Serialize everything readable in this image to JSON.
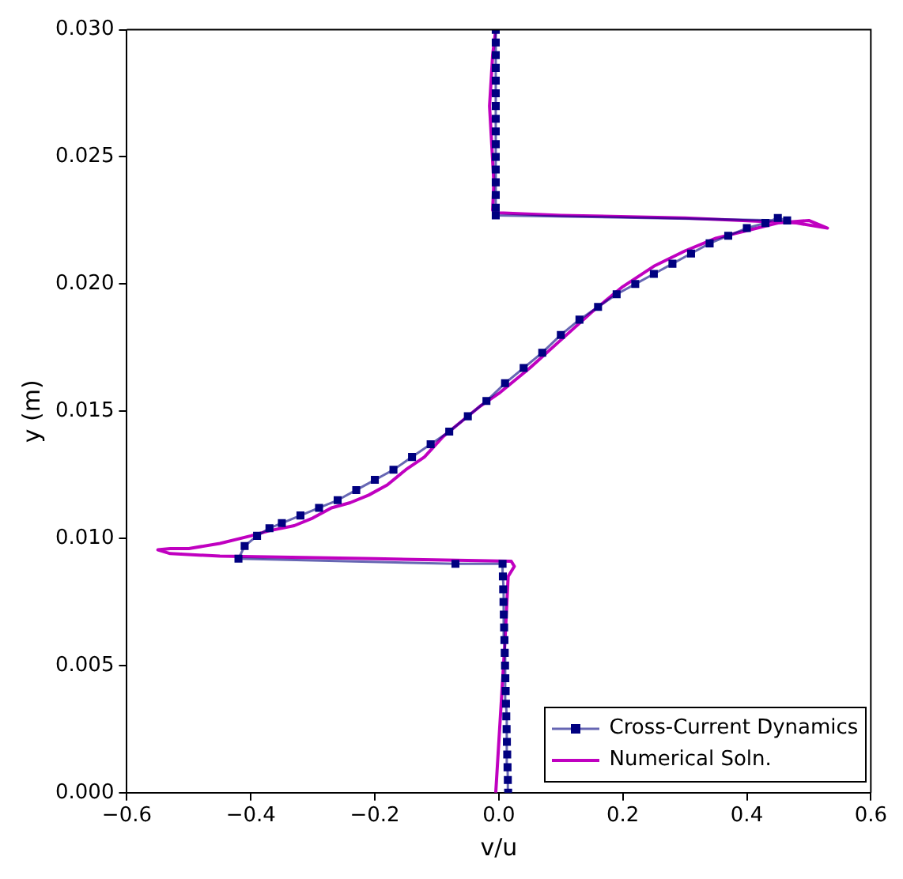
{
  "chart_data": {
    "type": "line",
    "xlabel": "v/u",
    "ylabel": "y (m)",
    "xlim": [
      -0.6,
      0.6
    ],
    "ylim": [
      0,
      0.03
    ],
    "xticks": [
      {
        "value": -0.6,
        "label": "−0.6"
      },
      {
        "value": -0.4,
        "label": "−0.4"
      },
      {
        "value": -0.2,
        "label": "−0.2"
      },
      {
        "value": 0,
        "label": "0.0"
      },
      {
        "value": 0.2,
        "label": "0.2"
      },
      {
        "value": 0.4,
        "label": "0.4"
      },
      {
        "value": 0.6,
        "label": "0.6"
      }
    ],
    "yticks": [
      {
        "value": 0,
        "label": "0.000"
      },
      {
        "value": 0.005,
        "label": "0.005"
      },
      {
        "value": 0.01,
        "label": "0.010"
      },
      {
        "value": 0.015,
        "label": "0.015"
      },
      {
        "value": 0.02,
        "label": "0.020"
      },
      {
        "value": 0.025,
        "label": "0.025"
      },
      {
        "value": 0.03,
        "label": "0.030"
      }
    ],
    "grid": false,
    "legend": "bottom right",
    "line_style": "solid",
    "series": [
      {
        "name": "Cross-Current Dynamics",
        "color": "#000080",
        "marker": "square",
        "x": [
          0.015,
          0.0145,
          0.014,
          0.0135,
          0.013,
          0.0125,
          0.012,
          0.0115,
          0.011,
          0.0105,
          0.01,
          0.0095,
          0.009,
          0.0085,
          0.008,
          0.0075,
          0.007,
          0.0065,
          0.006,
          -0.07,
          -0.42,
          -0.41,
          -0.39,
          -0.37,
          -0.35,
          -0.32,
          -0.29,
          -0.26,
          -0.23,
          -0.2,
          -0.17,
          -0.14,
          -0.11,
          -0.08,
          -0.05,
          -0.02,
          0.01,
          0.04,
          0.07,
          0.1,
          0.13,
          0.16,
          0.19,
          0.22,
          0.25,
          0.28,
          0.31,
          0.34,
          0.37,
          0.4,
          0.43,
          0.45,
          0.465,
          -0.005,
          -0.005,
          -0.005,
          -0.005,
          -0.005,
          -0.005,
          -0.005,
          -0.005,
          -0.005,
          -0.005,
          -0.005,
          -0.005,
          -0.005,
          -0.005,
          -0.005,
          -0.005
        ],
        "values": [
          0,
          0.0005,
          0.001,
          0.0015,
          0.002,
          0.0025,
          0.003,
          0.0035,
          0.004,
          0.0045,
          0.005,
          0.0055,
          0.006,
          0.0065,
          0.007,
          0.0075,
          0.008,
          0.0085,
          0.009,
          0.009,
          0.0092,
          0.0097,
          0.0101,
          0.0104,
          0.0106,
          0.0109,
          0.0112,
          0.0115,
          0.0119,
          0.0123,
          0.0127,
          0.0132,
          0.0137,
          0.0142,
          0.0148,
          0.0154,
          0.0161,
          0.0167,
          0.0173,
          0.018,
          0.0186,
          0.0191,
          0.0196,
          0.02,
          0.0204,
          0.0208,
          0.0212,
          0.0216,
          0.0219,
          0.0222,
          0.0224,
          0.0226,
          0.0225,
          0.0227,
          0.023,
          0.0235,
          0.024,
          0.0245,
          0.025,
          0.0255,
          0.026,
          0.0265,
          0.027,
          0.0275,
          0.028,
          0.0285,
          0.029,
          0.0295,
          0.03
        ]
      },
      {
        "name": "Numerical Soln.",
        "color": "#c000c0",
        "marker": "none",
        "x": [
          -0.005,
          0.0,
          0.005,
          0.01,
          0.015,
          0.025,
          0.02,
          -0.2,
          -0.45,
          -0.53,
          -0.55,
          -0.53,
          -0.5,
          -0.45,
          -0.4,
          -0.37,
          -0.33,
          -0.3,
          -0.27,
          -0.24,
          -0.21,
          -0.18,
          -0.15,
          -0.12,
          -0.09,
          -0.06,
          -0.03,
          0.0,
          0.05,
          0.1,
          0.15,
          0.2,
          0.25,
          0.3,
          0.35,
          0.4,
          0.45,
          0.5,
          0.53,
          0.48,
          0.3,
          0.1,
          0.0,
          -0.01,
          -0.008,
          -0.015,
          -0.01,
          -0.005
        ],
        "values": [
          0,
          0.002,
          0.004,
          0.006,
          0.0085,
          0.0089,
          0.0091,
          0.0092,
          0.0093,
          0.0094,
          0.00955,
          0.0096,
          0.0096,
          0.0098,
          0.0101,
          0.0103,
          0.0105,
          0.0108,
          0.0112,
          0.0114,
          0.0117,
          0.0121,
          0.0127,
          0.0132,
          0.014,
          0.0146,
          0.0152,
          0.0157,
          0.0167,
          0.0178,
          0.0189,
          0.0199,
          0.0207,
          0.0213,
          0.0218,
          0.0221,
          0.0224,
          0.0225,
          0.0222,
          0.0224,
          0.0226,
          0.0227,
          0.0228,
          0.0229,
          0.024,
          0.027,
          0.029,
          0.03
        ]
      }
    ]
  }
}
